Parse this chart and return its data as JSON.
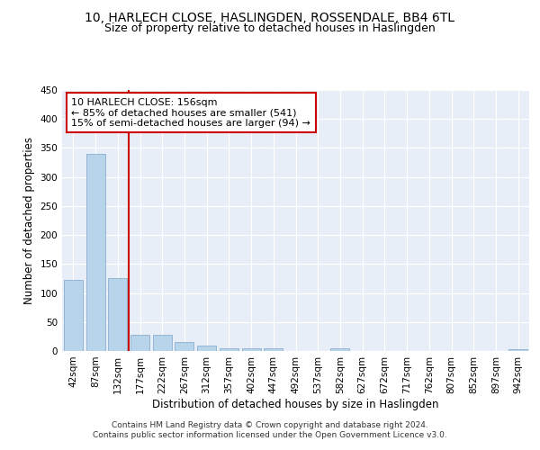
{
  "title": "10, HARLECH CLOSE, HASLINGDEN, ROSSENDALE, BB4 6TL",
  "subtitle": "Size of property relative to detached houses in Haslingden",
  "xlabel": "Distribution of detached houses by size in Haslingden",
  "ylabel": "Number of detached properties",
  "bar_values": [
    122,
    340,
    125,
    28,
    28,
    15,
    9,
    5,
    4,
    4,
    0,
    0,
    4,
    0,
    0,
    0,
    0,
    0,
    0,
    0,
    3
  ],
  "bar_labels": [
    "42sqm",
    "87sqm",
    "132sqm",
    "177sqm",
    "222sqm",
    "267sqm",
    "312sqm",
    "357sqm",
    "402sqm",
    "447sqm",
    "492sqm",
    "537sqm",
    "582sqm",
    "627sqm",
    "672sqm",
    "717sqm",
    "762sqm",
    "807sqm",
    "852sqm",
    "897sqm",
    "942sqm"
  ],
  "bar_color": "#b8d4ea",
  "bar_edge_color": "#8ab0d0",
  "vline_x": 2.5,
  "vline_color": "#cc0000",
  "annotation_line1": "10 HARLECH CLOSE: 156sqm",
  "annotation_line2": "← 85% of detached houses are smaller (541)",
  "annotation_line3": "15% of semi-detached houses are larger (94) →",
  "annotation_box_color": "#cc0000",
  "annotation_bg": "#ffffff",
  "ylim": [
    0,
    450
  ],
  "yticks": [
    0,
    50,
    100,
    150,
    200,
    250,
    300,
    350,
    400,
    450
  ],
  "footer_text": "Contains HM Land Registry data © Crown copyright and database right 2024.\nContains public sector information licensed under the Open Government Licence v3.0.",
  "bg_color": "#e8eef7",
  "grid_color": "#ffffff",
  "fig_bg": "#ffffff",
  "title_fontsize": 10,
  "subtitle_fontsize": 9,
  "axis_label_fontsize": 8.5,
  "tick_fontsize": 7.5,
  "annot_fontsize": 8,
  "footer_fontsize": 6.5
}
